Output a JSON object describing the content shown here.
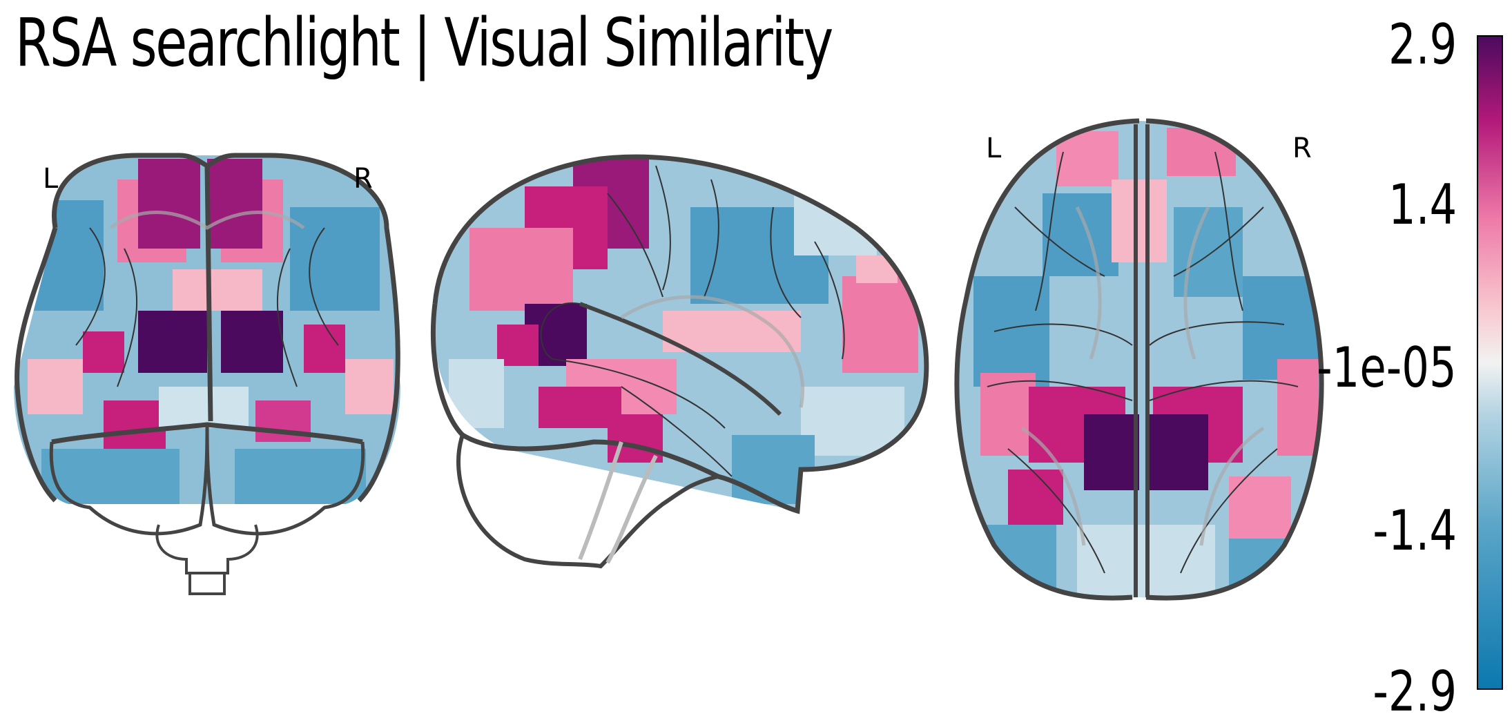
{
  "title": "RSA searchlight | Visual Similarity",
  "views": [
    {
      "name": "coronal",
      "left_label": "L",
      "right_label": "R"
    },
    {
      "name": "sagittal"
    },
    {
      "name": "axial",
      "left_label": "L",
      "right_label": "R"
    }
  ],
  "colorbar": {
    "max_label": "2.9",
    "upper_label": "1.4",
    "mid_label": "-1e-05",
    "lower_label": "-1.4",
    "min_label": "-2.9",
    "colormap": "RdPu-Blue diverging",
    "colors": {
      "top": "#4b0a5e",
      "high": "#b3197a",
      "pink": "#ee7aa8",
      "light_pink": "#f8c9cf",
      "neutral": "#f2f2f2",
      "light_blue": "#b3d3e2",
      "blue": "#5aa5c8",
      "bottom": "#0b78ae"
    }
  }
}
